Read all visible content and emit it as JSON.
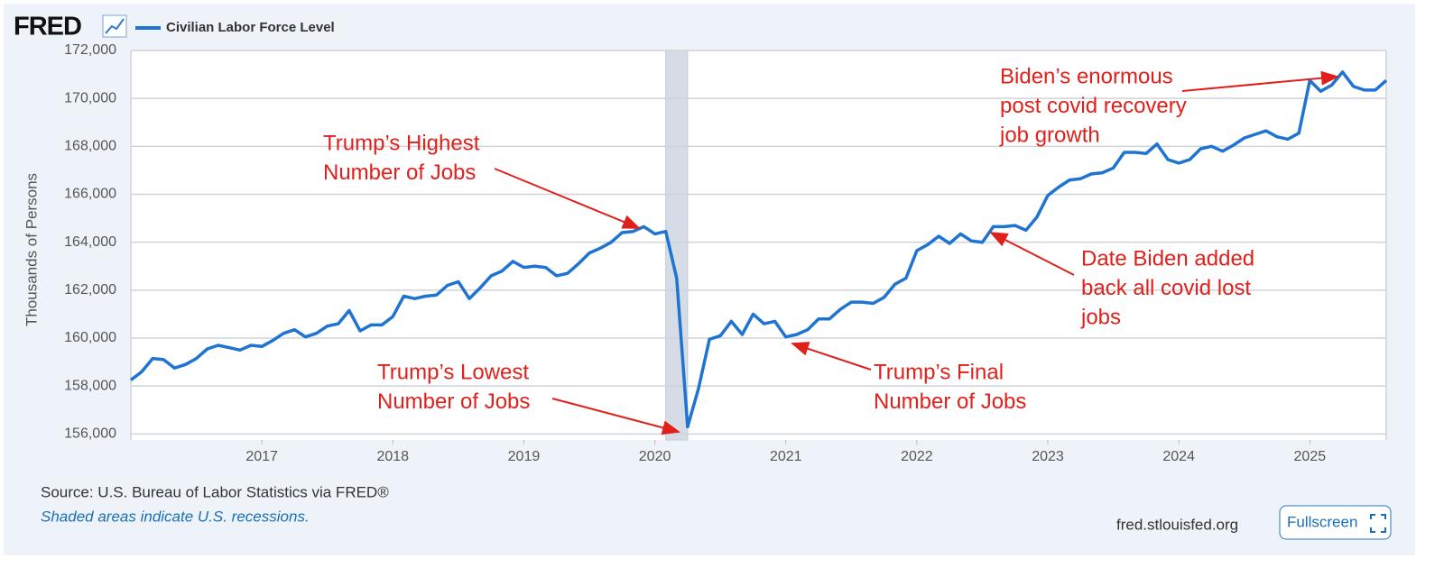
{
  "logo": "FRED",
  "chart_data": {
    "type": "line",
    "y_label": "Thousands of Persons",
    "x": [
      "2016-01",
      "2016-02",
      "2016-03",
      "2016-04",
      "2016-05",
      "2016-06",
      "2016-07",
      "2016-08",
      "2016-09",
      "2016-10",
      "2016-11",
      "2016-12",
      "2017-01",
      "2017-02",
      "2017-03",
      "2017-04",
      "2017-05",
      "2017-06",
      "2017-07",
      "2017-08",
      "2017-09",
      "2017-10",
      "2017-11",
      "2017-12",
      "2018-01",
      "2018-02",
      "2018-03",
      "2018-04",
      "2018-05",
      "2018-06",
      "2018-07",
      "2018-08",
      "2018-09",
      "2018-10",
      "2018-11",
      "2018-12",
      "2019-01",
      "2019-02",
      "2019-03",
      "2019-04",
      "2019-05",
      "2019-06",
      "2019-07",
      "2019-08",
      "2019-09",
      "2019-10",
      "2019-11",
      "2019-12",
      "2020-01",
      "2020-02",
      "2020-03",
      "2020-04",
      "2020-05",
      "2020-06",
      "2020-07",
      "2020-08",
      "2020-09",
      "2020-10",
      "2020-11",
      "2020-12",
      "2021-01",
      "2021-02",
      "2021-03",
      "2021-04",
      "2021-05",
      "2021-06",
      "2021-07",
      "2021-08",
      "2021-09",
      "2021-10",
      "2021-11",
      "2021-12",
      "2022-01",
      "2022-02",
      "2022-03",
      "2022-04",
      "2022-05",
      "2022-06",
      "2022-07",
      "2022-08",
      "2022-09",
      "2022-10",
      "2022-11",
      "2022-12",
      "2023-01",
      "2023-02",
      "2023-03",
      "2023-04",
      "2023-05",
      "2023-06",
      "2023-07",
      "2023-08",
      "2023-09",
      "2023-10",
      "2023-11",
      "2023-12",
      "2024-01",
      "2024-02",
      "2024-03",
      "2024-04",
      "2024-05",
      "2024-06",
      "2024-07",
      "2024-08",
      "2024-09",
      "2024-10",
      "2024-11",
      "2024-12",
      "2025-01",
      "2025-02",
      "2025-03",
      "2025-04",
      "2025-05",
      "2025-06",
      "2025-07",
      "2025-08"
    ],
    "series": [
      {
        "name": "Civilian Labor Force Level",
        "color": "#1f74d2",
        "values": [
          158250,
          158600,
          159150,
          159100,
          158750,
          158900,
          159150,
          159550,
          159700,
          159600,
          159500,
          159700,
          159650,
          159900,
          160200,
          160350,
          160050,
          160200,
          160500,
          160600,
          161150,
          160300,
          160550,
          160550,
          160900,
          161750,
          161650,
          161750,
          161800,
          162200,
          162350,
          161650,
          162100,
          162600,
          162800,
          163200,
          162950,
          163000,
          162950,
          162600,
          162700,
          163100,
          163550,
          163750,
          164000,
          164400,
          164450,
          164650,
          164350,
          164450,
          162500,
          156300,
          157900,
          159950,
          160100,
          160700,
          160150,
          161000,
          160600,
          160700,
          160050,
          160150,
          160350,
          160800,
          160800,
          161200,
          161500,
          161500,
          161450,
          161700,
          162250,
          162500,
          163650,
          163900,
          164250,
          163950,
          164350,
          164050,
          164000,
          164650,
          164650,
          164700,
          164500,
          165050,
          165950,
          166300,
          166600,
          166650,
          166850,
          166900,
          167100,
          167750,
          167750,
          167700,
          168100,
          167450,
          167300,
          167450,
          167900,
          168000,
          167800,
          168050,
          168350,
          168500,
          168650,
          168400,
          168300,
          168550,
          170750,
          170300,
          170550,
          171100,
          170500,
          170350,
          170350,
          170750
        ]
      }
    ],
    "xlim": [
      "2016-01",
      "2025-08"
    ],
    "xticks": [
      {
        "value": "2017-01",
        "label": "2017"
      },
      {
        "value": "2018-01",
        "label": "2018"
      },
      {
        "value": "2019-01",
        "label": "2019"
      },
      {
        "value": "2020-01",
        "label": "2020"
      },
      {
        "value": "2021-01",
        "label": "2021"
      },
      {
        "value": "2022-01",
        "label": "2022"
      },
      {
        "value": "2023-01",
        "label": "2023"
      },
      {
        "value": "2024-01",
        "label": "2024"
      },
      {
        "value": "2025-01",
        "label": "2025"
      }
    ],
    "ylim": [
      155750,
      172000
    ],
    "yticks": [
      {
        "value": 156000,
        "label": "156,000"
      },
      {
        "value": 158000,
        "label": "158,000"
      },
      {
        "value": 160000,
        "label": "160,000"
      },
      {
        "value": 162000,
        "label": "162,000"
      },
      {
        "value": 164000,
        "label": "164,000"
      },
      {
        "value": 166000,
        "label": "166,000"
      },
      {
        "value": 168000,
        "label": "168,000"
      },
      {
        "value": 170000,
        "label": "170,000"
      },
      {
        "value": 172000,
        "label": "172,000"
      }
    ],
    "grid": true,
    "recessions": [
      [
        "2020-02",
        "2020-04"
      ]
    ],
    "annotations": [
      {
        "lines": [
          "Trump’s Highest",
          "Number of Jobs"
        ]
      },
      {
        "lines": [
          "Trump’s Lowest",
          "Number of Jobs"
        ]
      },
      {
        "lines": [
          "Trump’s Final",
          "Number of Jobs"
        ]
      },
      {
        "lines": [
          "Date Biden added",
          "back all covid lost",
          "jobs"
        ]
      },
      {
        "lines": [
          "Biden’s enormous",
          "post covid recovery",
          "job growth"
        ]
      }
    ]
  },
  "footer": {
    "source": "Source: U.S. Bureau of Labor Statistics via FRED®",
    "note": "Shaded areas indicate U.S. recessions.",
    "site": "fred.stlouisfed.org",
    "button": "Fullscreen"
  }
}
